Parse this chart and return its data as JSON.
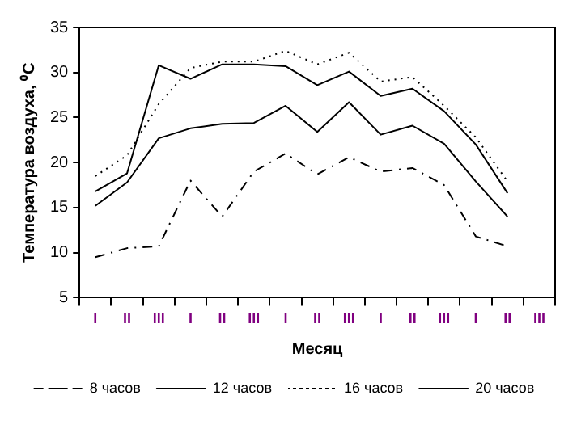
{
  "chart_data": {
    "type": "line",
    "xlabel": "Месяц",
    "ylabel": "Температура воздуха, ⁰C",
    "categories": [
      "I",
      "II",
      "III",
      "I",
      "II",
      "III",
      "I",
      "II",
      "III",
      "I",
      "II",
      "III",
      "I",
      "II",
      "III"
    ],
    "ylim": [
      5,
      35
    ],
    "yticks": [
      5,
      10,
      15,
      20,
      25,
      30,
      35
    ],
    "grid": false,
    "legend": "bottom",
    "marker": "none",
    "series": [
      {
        "name": "8 часов",
        "color": "#000000",
        "line_style": "dashed",
        "values": [
          9.5,
          10.5,
          10.7,
          18,
          14,
          19,
          21,
          18.7,
          20.6,
          19,
          19.4,
          17.5,
          11.8,
          10.7,
          null
        ]
      },
      {
        "name": "12 часов",
        "color": "#000000",
        "line_style": "solid",
        "values": [
          16.8,
          18.8,
          30.8,
          29.3,
          30.9,
          30.9,
          30.7,
          28.6,
          30.1,
          27.4,
          28.2,
          25.7,
          22,
          16.6,
          null
        ]
      },
      {
        "name": "16 часов",
        "color": "#000000",
        "line_style": "dotted",
        "values": [
          18.5,
          20.8,
          26.5,
          30.5,
          31.2,
          31.2,
          32.4,
          30.9,
          32.2,
          29,
          29.5,
          26.3,
          22.8,
          17.9,
          null
        ]
      },
      {
        "name": "20 часов",
        "color": "#000000",
        "line_style": "solid",
        "values": [
          15.2,
          17.8,
          22.7,
          23.8,
          24.3,
          24.4,
          26.3,
          23.4,
          26.7,
          23.1,
          24.1,
          22.1,
          17.9,
          14,
          null
        ]
      }
    ]
  }
}
